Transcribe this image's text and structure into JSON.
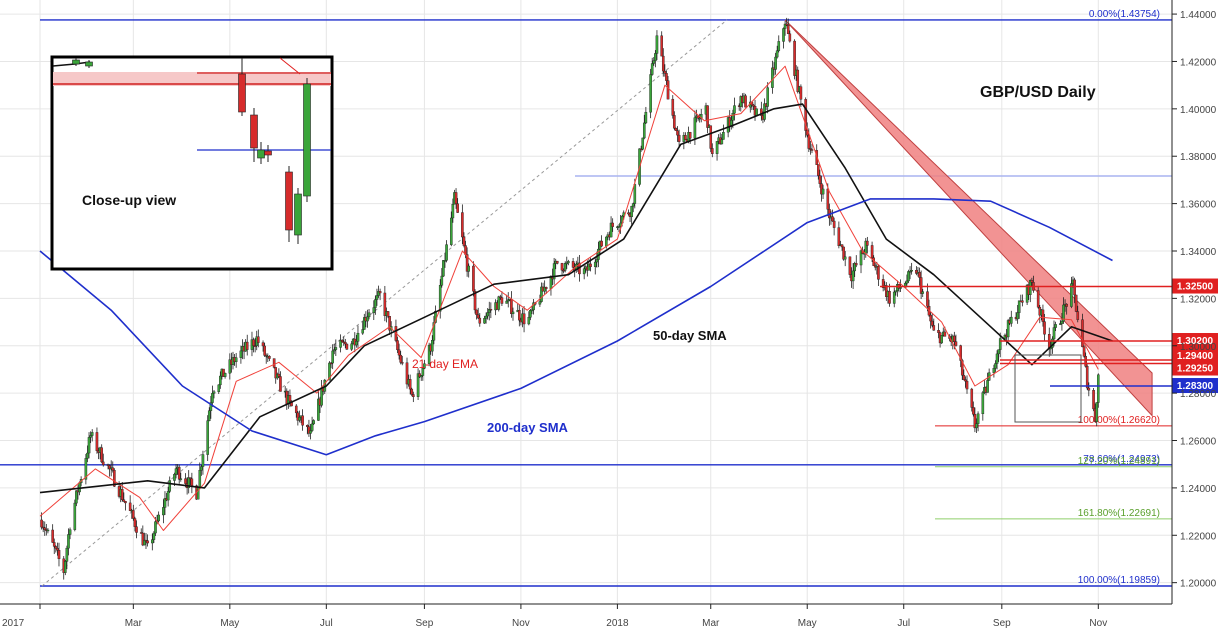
{
  "chart_data": {
    "type": "candlestick",
    "title": "GBP/USD Daily",
    "y_axis": {
      "range": [
        1.192,
        1.444
      ],
      "ticks": [
        "1.44000",
        "1.42000",
        "1.40000",
        "1.38000",
        "1.36000",
        "1.34000",
        "1.32000",
        "1.30000",
        "1.28000",
        "1.26000",
        "1.24000",
        "1.22000",
        "1.20000"
      ],
      "position": "right"
    },
    "x_axis": {
      "ticks": [
        "2017",
        "Mar",
        "May",
        "Jul",
        "Sep",
        "Nov",
        "2018",
        "Mar",
        "May",
        "Jul",
        "Sep",
        "Nov"
      ],
      "tick_dates": [
        "2017-01-01",
        "2017-03-01",
        "2017-05-01",
        "2017-07-01",
        "2017-09-01",
        "2017-11-01",
        "2018-01-01",
        "2018-03-01",
        "2018-05-01",
        "2018-07-01",
        "2018-09-01",
        "2018-11-01"
      ],
      "range": [
        "2017-01-01",
        "2018-12-10"
      ]
    },
    "grid": true,
    "price_path": [
      [
        "2017-01-01",
        1.228
      ],
      [
        "2017-01-16",
        1.205
      ],
      [
        "2017-01-20",
        1.225
      ],
      [
        "2017-02-02",
        1.262
      ],
      [
        "2017-02-16",
        1.245
      ],
      [
        "2017-03-10",
        1.214
      ],
      [
        "2017-03-28",
        1.248
      ],
      [
        "2017-04-10",
        1.238
      ],
      [
        "2017-04-20",
        1.282
      ],
      [
        "2017-05-05",
        1.295
      ],
      [
        "2017-05-18",
        1.303
      ],
      [
        "2017-06-08",
        1.275
      ],
      [
        "2017-06-21",
        1.262
      ],
      [
        "2017-07-05",
        1.298
      ],
      [
        "2017-07-18",
        1.302
      ],
      [
        "2017-07-28",
        1.315
      ],
      [
        "2017-08-04",
        1.321
      ],
      [
        "2017-08-24",
        1.279
      ],
      [
        "2017-09-05",
        1.3
      ],
      [
        "2017-09-20",
        1.362
      ],
      [
        "2017-10-05",
        1.31
      ],
      [
        "2017-10-20",
        1.32
      ],
      [
        "2017-11-05",
        1.31
      ],
      [
        "2017-11-24",
        1.335
      ],
      [
        "2017-12-12",
        1.331
      ],
      [
        "2017-12-28",
        1.35
      ],
      [
        "2018-01-10",
        1.358
      ],
      [
        "2018-01-26",
        1.43
      ],
      [
        "2018-02-09",
        1.384
      ],
      [
        "2018-02-26",
        1.4
      ],
      [
        "2018-03-02",
        1.38
      ],
      [
        "2018-03-20",
        1.405
      ],
      [
        "2018-04-02",
        1.395
      ],
      [
        "2018-04-17",
        1.4375
      ],
      [
        "2018-05-02",
        1.386
      ],
      [
        "2018-05-15",
        1.355
      ],
      [
        "2018-05-29",
        1.33
      ],
      [
        "2018-06-07",
        1.342
      ],
      [
        "2018-06-22",
        1.32
      ],
      [
        "2018-07-09",
        1.332
      ],
      [
        "2018-07-20",
        1.305
      ],
      [
        "2018-08-02",
        1.302
      ],
      [
        "2018-08-15",
        1.2662
      ],
      [
        "2018-08-30",
        1.3
      ],
      [
        "2018-09-20",
        1.327
      ],
      [
        "2018-10-01",
        1.3
      ],
      [
        "2018-10-16",
        1.325
      ],
      [
        "2018-10-25",
        1.285
      ],
      [
        "2018-10-30",
        1.2695
      ],
      [
        "2018-11-02",
        1.296
      ]
    ],
    "series": [
      {
        "name": "21-day EMA",
        "color": "#f0413a",
        "values": [
          [
            "2017-01-01",
            1.228
          ],
          [
            "2017-02-05",
            1.248
          ],
          [
            "2017-03-05",
            1.236
          ],
          [
            "2017-03-20",
            1.222
          ],
          [
            "2017-04-15",
            1.242
          ],
          [
            "2017-05-05",
            1.285
          ],
          [
            "2017-06-01",
            1.293
          ],
          [
            "2017-06-25",
            1.28
          ],
          [
            "2017-07-15",
            1.296
          ],
          [
            "2017-08-10",
            1.308
          ],
          [
            "2017-08-30",
            1.295
          ],
          [
            "2017-09-25",
            1.34
          ],
          [
            "2017-10-15",
            1.325
          ],
          [
            "2017-11-05",
            1.315
          ],
          [
            "2017-12-05",
            1.333
          ],
          [
            "2018-01-01",
            1.345
          ],
          [
            "2018-01-31",
            1.41
          ],
          [
            "2018-02-25",
            1.395
          ],
          [
            "2018-03-20",
            1.398
          ],
          [
            "2018-04-17",
            1.418
          ],
          [
            "2018-05-15",
            1.365
          ],
          [
            "2018-06-05",
            1.34
          ],
          [
            "2018-07-01",
            1.325
          ],
          [
            "2018-07-25",
            1.31
          ],
          [
            "2018-08-15",
            1.283
          ],
          [
            "2018-09-05",
            1.292
          ],
          [
            "2018-09-25",
            1.312
          ],
          [
            "2018-10-15",
            1.311
          ],
          [
            "2018-11-01",
            1.29
          ]
        ]
      },
      {
        "name": "50-day SMA",
        "color": "#111111",
        "values": [
          [
            "2017-01-01",
            1.238
          ],
          [
            "2017-03-10",
            1.243
          ],
          [
            "2017-04-15",
            1.24
          ],
          [
            "2017-05-20",
            1.27
          ],
          [
            "2017-07-01",
            1.283
          ],
          [
            "2017-07-25",
            1.3
          ],
          [
            "2017-09-01",
            1.312
          ],
          [
            "2017-10-15",
            1.326
          ],
          [
            "2017-12-01",
            1.33
          ],
          [
            "2018-01-05",
            1.345
          ],
          [
            "2018-02-10",
            1.385
          ],
          [
            "2018-03-15",
            1.393
          ],
          [
            "2018-04-10",
            1.4
          ],
          [
            "2018-04-28",
            1.402
          ],
          [
            "2018-05-25",
            1.375
          ],
          [
            "2018-06-20",
            1.345
          ],
          [
            "2018-07-20",
            1.33
          ],
          [
            "2018-08-25",
            1.308
          ],
          [
            "2018-09-20",
            1.292
          ],
          [
            "2018-10-15",
            1.308
          ],
          [
            "2018-11-10",
            1.302
          ]
        ]
      },
      {
        "name": "200-day SMA",
        "color": "#1f2fcc",
        "values": [
          [
            "2017-01-01",
            1.34
          ],
          [
            "2017-02-15",
            1.315
          ],
          [
            "2017-04-01",
            1.283
          ],
          [
            "2017-05-15",
            1.264
          ],
          [
            "2017-07-01",
            1.254
          ],
          [
            "2017-08-01",
            1.262
          ],
          [
            "2017-09-01",
            1.268
          ],
          [
            "2017-11-01",
            1.282
          ],
          [
            "2018-01-01",
            1.302
          ],
          [
            "2018-03-01",
            1.325
          ],
          [
            "2018-05-01",
            1.352
          ],
          [
            "2018-06-10",
            1.362
          ],
          [
            "2018-07-20",
            1.362
          ],
          [
            "2018-08-25",
            1.361
          ],
          [
            "2018-10-01",
            1.35
          ],
          [
            "2018-11-10",
            1.336
          ]
        ]
      }
    ],
    "levels": [
      {
        "label": "1.32500",
        "value": 1.325,
        "color": "#e02020",
        "style": "box"
      },
      {
        "label": "1.30200",
        "value": 1.302,
        "color": "#e02020",
        "style": "box"
      },
      {
        "label": "1.29400",
        "value": 1.294,
        "color": "#e02020",
        "style": "box"
      },
      {
        "label": "1.29250",
        "value": 1.2925,
        "color": "#e02020",
        "style": "box"
      },
      {
        "label": "1.28300",
        "value": 1.283,
        "color": "#1f2fcc",
        "style": "box"
      }
    ],
    "fibonacci": [
      {
        "label": "0.00%(1.43754)",
        "value": 1.43754,
        "color": "#1f2fcc"
      },
      {
        "label": "100.00%(1.26620)",
        "value": 1.2662,
        "color": "#e02020"
      },
      {
        "label": "78.60%(1.24973)",
        "value": 1.24973,
        "color": "#1f2fcc"
      },
      {
        "label": "127.20%(1.24891)",
        "value": 1.24891,
        "color": "#5aa02c"
      },
      {
        "label": "161.80%(1.22691)",
        "value": 1.22691,
        "color": "#5aa02c"
      },
      {
        "label": "100.00%(1.19859)",
        "value": 1.19859,
        "color": "#1f2fcc"
      }
    ],
    "annotations": {
      "title": "GBP/USD Daily",
      "ema_label": "21-day EMA",
      "sma50_label": "50-day SMA",
      "sma200_label": "200-day SMA",
      "inset_label": "Close-up view"
    },
    "trend_channel": {
      "color": "#f08080",
      "upper": [
        [
          "2018-04-17",
          1.4375
        ],
        [
          "2018-12-05",
          1.2885
        ]
      ],
      "lower": [
        [
          "2018-04-17",
          1.4375
        ],
        [
          "2018-12-05",
          1.2705
        ]
      ]
    }
  }
}
